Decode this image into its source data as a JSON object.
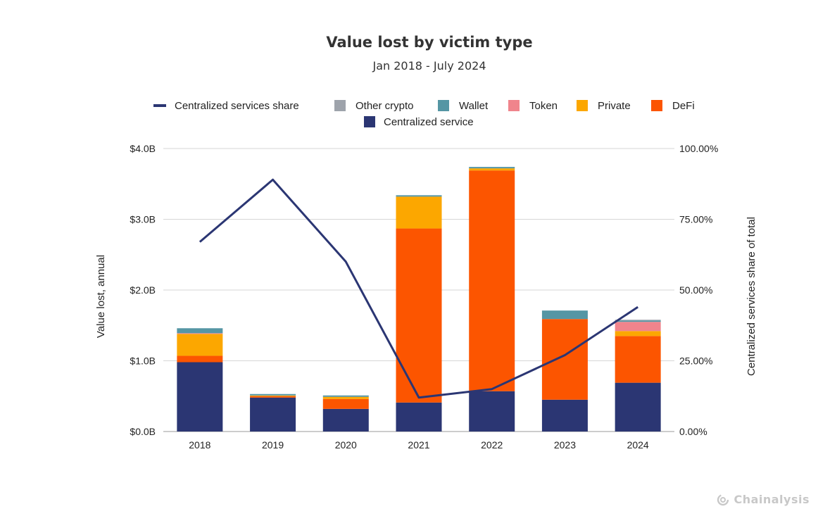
{
  "chart_data": {
    "type": "bar",
    "stacked": true,
    "title": "Value lost by victim type",
    "subtitle": "Jan 2018 - July 2024",
    "categories": [
      "2018",
      "2019",
      "2020",
      "2021",
      "2022",
      "2023",
      "2024"
    ],
    "ylabel": "Value lost, annual",
    "y2label": "Centralized services share of total",
    "ylim": [
      0,
      4.0
    ],
    "yticks": [
      "$0.0B",
      "$1.0B",
      "$2.0B",
      "$3.0B",
      "$4.0B"
    ],
    "y2lim": [
      0,
      100
    ],
    "y2ticks": [
      "0.00%",
      "25.00%",
      "50.00%",
      "75.00%",
      "100.00%"
    ],
    "grid": true,
    "legend_position": "top",
    "series": [
      {
        "name": "Centralized service",
        "color": "#2b3673",
        "values": [
          0.98,
          0.48,
          0.32,
          0.41,
          0.57,
          0.45,
          0.69
        ]
      },
      {
        "name": "DeFi",
        "color": "#fc5500",
        "values": [
          0.09,
          0.02,
          0.14,
          2.46,
          3.12,
          1.14,
          0.66
        ]
      },
      {
        "name": "Private",
        "color": "#fca700",
        "values": [
          0.31,
          0.01,
          0.03,
          0.45,
          0.03,
          0.0,
          0.07
        ]
      },
      {
        "name": "Token",
        "color": "#f0848c",
        "values": [
          0.01,
          0.0,
          0.0,
          0.0,
          0.0,
          0.0,
          0.13
        ]
      },
      {
        "name": "Wallet",
        "color": "#5596a4",
        "values": [
          0.07,
          0.02,
          0.02,
          0.02,
          0.02,
          0.12,
          0.02
        ]
      },
      {
        "name": "Other crypto",
        "color": "#9ea3ab",
        "values": [
          0.0,
          0.0,
          0.0,
          0.0,
          0.0,
          0.0,
          0.01
        ]
      }
    ],
    "line_series": {
      "name": "Centralized services share",
      "color": "#2b3673",
      "axis": "right",
      "values": [
        67,
        89,
        60,
        12,
        15,
        27,
        44
      ]
    }
  },
  "legend": {
    "row1": [
      "Centralized services share",
      "Other crypto",
      "Wallet",
      "Token",
      "Private",
      "DeFi"
    ],
    "row2": [
      "Centralized service"
    ]
  },
  "watermark": {
    "text": "Chainalysis",
    "icon": "chainalysis-logo-icon"
  }
}
